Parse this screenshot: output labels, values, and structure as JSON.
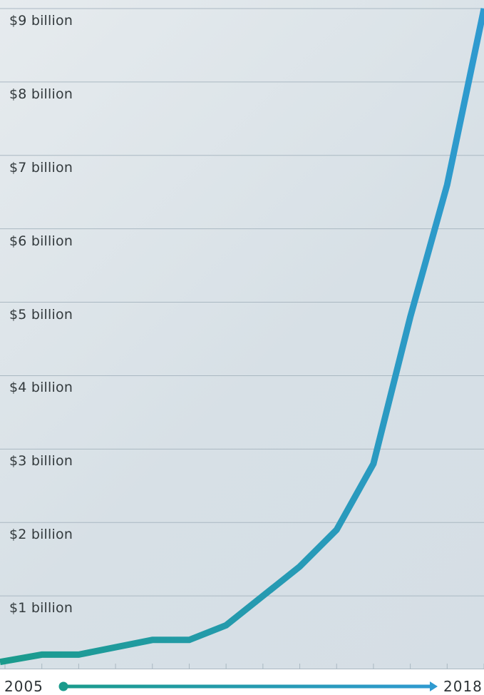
{
  "chart_data": {
    "type": "line",
    "title": "",
    "xlabel": "",
    "ylabel": "",
    "ylim": [
      0,
      9
    ],
    "y_ticks": [
      {
        "value": 1,
        "label": "$1 billion"
      },
      {
        "value": 2,
        "label": "$2 billion"
      },
      {
        "value": 3,
        "label": "$3 billion"
      },
      {
        "value": 4,
        "label": "$4 billion"
      },
      {
        "value": 5,
        "label": "$5 billion"
      },
      {
        "value": 6,
        "label": "$6 billion"
      },
      {
        "value": 7,
        "label": "$7 billion"
      },
      {
        "value": 8,
        "label": "$8 billion"
      },
      {
        "value": 9,
        "label": "$9 billion"
      }
    ],
    "x_start_label": "2005",
    "x_end_label": "2018",
    "grid": true,
    "series": [
      {
        "points": [
          {
            "x": 2005.0,
            "y": 0.1
          },
          {
            "x": 2006.0,
            "y": 0.2
          },
          {
            "x": 2007.0,
            "y": 0.2
          },
          {
            "x": 2009.0,
            "y": 0.4
          },
          {
            "x": 2010.0,
            "y": 0.4
          },
          {
            "x": 2011.0,
            "y": 0.6
          },
          {
            "x": 2013.0,
            "y": 1.4
          },
          {
            "x": 2014.0,
            "y": 1.9
          },
          {
            "x": 2015.0,
            "y": 2.8
          },
          {
            "x": 2016.0,
            "y": 4.8
          },
          {
            "x": 2017.0,
            "y": 6.6
          },
          {
            "x": 2018.0,
            "y": 9.0
          }
        ]
      }
    ],
    "colors": {
      "line_start": "#1a9b8c",
      "line_end": "#2f9ad0",
      "grid": "#aab8c2",
      "background": "#dde5ea"
    }
  }
}
